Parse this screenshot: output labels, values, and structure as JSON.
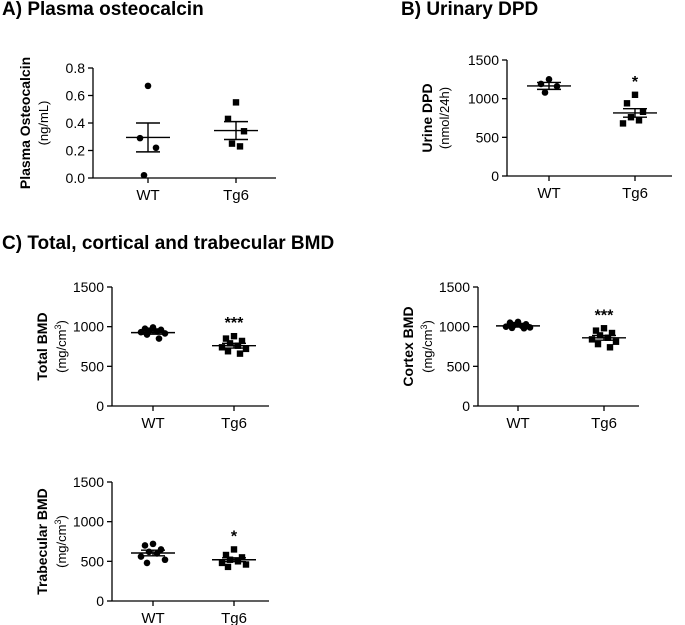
{
  "section_titles": {
    "a": "A) Plasma osteocalcin",
    "b": "B) Urinary DPD",
    "c": "C) Total, cortical and trabecular BMD"
  },
  "chart_data": [
    {
      "id": "plasma-osteocalcin",
      "type": "scatter",
      "title": "A) Plasma osteocalcin",
      "ylabel": "Plasma Osteocalcin",
      "yunit_prefix": "(ng/mL)",
      "yunit_sup": "",
      "yunit_suffix": "",
      "ylim": [
        0,
        0.8
      ],
      "yticks": [
        0.0,
        0.2,
        0.4,
        0.6,
        0.8
      ],
      "ytick_labels": [
        "0.0",
        "0.2",
        "0.4",
        "0.6",
        "0.8"
      ],
      "grid": false,
      "categories": [
        "WT",
        "Tg6"
      ],
      "groups": [
        {
          "label": "WT",
          "marker": "circle",
          "points": [
            0.67,
            0.29,
            0.22,
            0.02
          ],
          "mean": 0.295,
          "sem": [
            0.19,
            0.4
          ],
          "significance": ""
        },
        {
          "label": "Tg6",
          "marker": "square",
          "points": [
            0.55,
            0.43,
            0.34,
            0.25,
            0.23
          ],
          "mean": 0.345,
          "sem": [
            0.28,
            0.41
          ],
          "significance": ""
        }
      ]
    },
    {
      "id": "urinary-dpd",
      "type": "scatter",
      "title": "B) Urinary DPD",
      "ylabel": "Urine DPD",
      "yunit_prefix": "(nmol/24h)",
      "yunit_sup": "",
      "yunit_suffix": "",
      "ylim": [
        0,
        1500
      ],
      "yticks": [
        0,
        500,
        1000,
        1500
      ],
      "ytick_labels": [
        "0",
        "500",
        "1000",
        "1500"
      ],
      "grid": false,
      "categories": [
        "WT",
        "Tg6"
      ],
      "groups": [
        {
          "label": "WT",
          "marker": "circle",
          "points": [
            1250,
            1190,
            1160,
            1080
          ],
          "mean": 1165,
          "sem": [
            1120,
            1210
          ],
          "significance": ""
        },
        {
          "label": "Tg6",
          "marker": "square",
          "points": [
            1050,
            940,
            830,
            760,
            720,
            680
          ],
          "mean": 815,
          "sem": [
            760,
            870
          ],
          "significance": "*"
        }
      ]
    },
    {
      "id": "total-bmd",
      "type": "scatter",
      "title": "C) Total, cortical and trabecular BMD",
      "ylabel": "Total BMD",
      "yunit_prefix": "(mg/cm",
      "yunit_sup": "3",
      "yunit_suffix": ")",
      "ylim": [
        0,
        1500
      ],
      "yticks": [
        0,
        500,
        1000,
        1500
      ],
      "ytick_labels": [
        "0",
        "500",
        "1000",
        "1500"
      ],
      "grid": false,
      "categories": [
        "WT",
        "Tg6"
      ],
      "groups": [
        {
          "label": "WT",
          "marker": "circle",
          "points": [
            990,
            975,
            960,
            950,
            940,
            930,
            915,
            900,
            850
          ],
          "mean": 925,
          "sem": [
            905,
            945
          ],
          "significance": ""
        },
        {
          "label": "Tg6",
          "marker": "square",
          "points": [
            880,
            850,
            820,
            790,
            760,
            740,
            720,
            690,
            660
          ],
          "mean": 760,
          "sem": [
            730,
            790
          ],
          "significance": "***"
        }
      ]
    },
    {
      "id": "cortex-bmd",
      "type": "scatter",
      "title": "C) Total, cortical and trabecular BMD",
      "ylabel": "Cortex BMD",
      "yunit_prefix": "(mg/cm",
      "yunit_sup": "3",
      "yunit_suffix": ")",
      "ylim": [
        0,
        1500
      ],
      "yticks": [
        0,
        500,
        1000,
        1500
      ],
      "ytick_labels": [
        "0",
        "500",
        "1000",
        "1500"
      ],
      "grid": false,
      "categories": [
        "WT",
        "Tg6"
      ],
      "groups": [
        {
          "label": "WT",
          "marker": "circle",
          "points": [
            1060,
            1050,
            1030,
            1020,
            1010,
            1000,
            990,
            985,
            980
          ],
          "mean": 1010,
          "sem": [
            995,
            1025
          ],
          "significance": ""
        },
        {
          "label": "Tg6",
          "marker": "square",
          "points": [
            980,
            950,
            920,
            890,
            860,
            840,
            810,
            780,
            740
          ],
          "mean": 860,
          "sem": [
            830,
            890
          ],
          "significance": "***"
        }
      ]
    },
    {
      "id": "trabecular-bmd",
      "type": "scatter",
      "title": "C) Total, cortical and trabecular BMD",
      "ylabel": "Trabecular BMD",
      "yunit_prefix": "(mg/cm",
      "yunit_sup": "3",
      "yunit_suffix": ")",
      "ylim": [
        0,
        1500
      ],
      "yticks": [
        0,
        500,
        1000,
        1500
      ],
      "ytick_labels": [
        "0",
        "500",
        "1000",
        "1500"
      ],
      "grid": false,
      "categories": [
        "WT",
        "Tg6"
      ],
      "groups": [
        {
          "label": "WT",
          "marker": "circle",
          "points": [
            720,
            700,
            650,
            620,
            600,
            560,
            520,
            480
          ],
          "mean": 605,
          "sem": [
            570,
            640
          ],
          "significance": ""
        },
        {
          "label": "Tg6",
          "marker": "square",
          "points": [
            650,
            580,
            550,
            520,
            500,
            480,
            460,
            430
          ],
          "mean": 520,
          "sem": [
            495,
            545
          ],
          "significance": "*"
        }
      ]
    }
  ]
}
